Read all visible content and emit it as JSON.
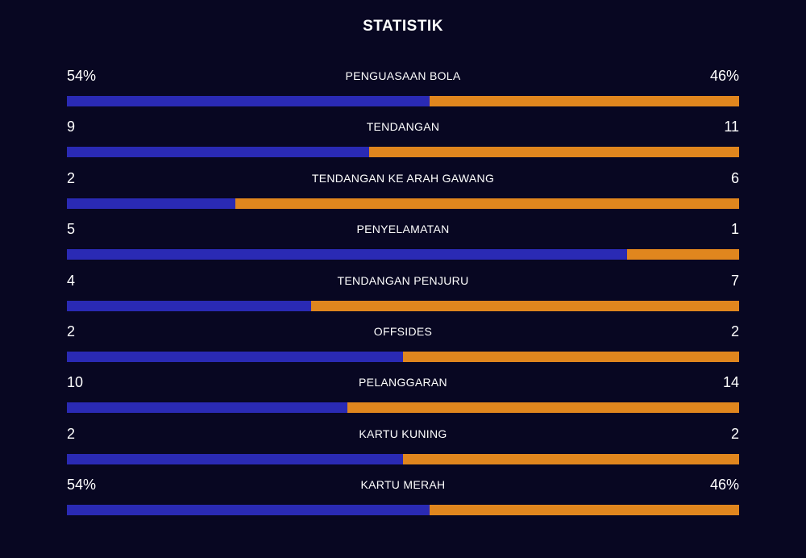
{
  "title": "STATISTIK",
  "colors": {
    "background": "#080722",
    "home": "#2a2ab4",
    "away": "#e0861e",
    "text": "#ffffff"
  },
  "stats": [
    {
      "label": "PENGUASAAN BOLA",
      "left": "54%",
      "right": "46%",
      "home_share": 0.54
    },
    {
      "label": "TENDANGAN",
      "left": "9",
      "right": "11",
      "home_share": 0.45
    },
    {
      "label": "TENDANGAN KE ARAH GAWANG",
      "left": "2",
      "right": "6",
      "home_share": 0.25
    },
    {
      "label": "PENYELAMATAN",
      "left": "5",
      "right": "1",
      "home_share": 0.8333
    },
    {
      "label": "TENDANGAN PENJURU",
      "left": "4",
      "right": "7",
      "home_share": 0.3636
    },
    {
      "label": "OFFSIDES",
      "left": "2",
      "right": "2",
      "home_share": 0.5
    },
    {
      "label": "PELANGGARAN",
      "left": "10",
      "right": "14",
      "home_share": 0.4167
    },
    {
      "label": "KARTU KUNING",
      "left": "2",
      "right": "2",
      "home_share": 0.5
    },
    {
      "label": "KARTU MERAH",
      "left": "54%",
      "right": "46%",
      "home_share": 0.54
    }
  ]
}
